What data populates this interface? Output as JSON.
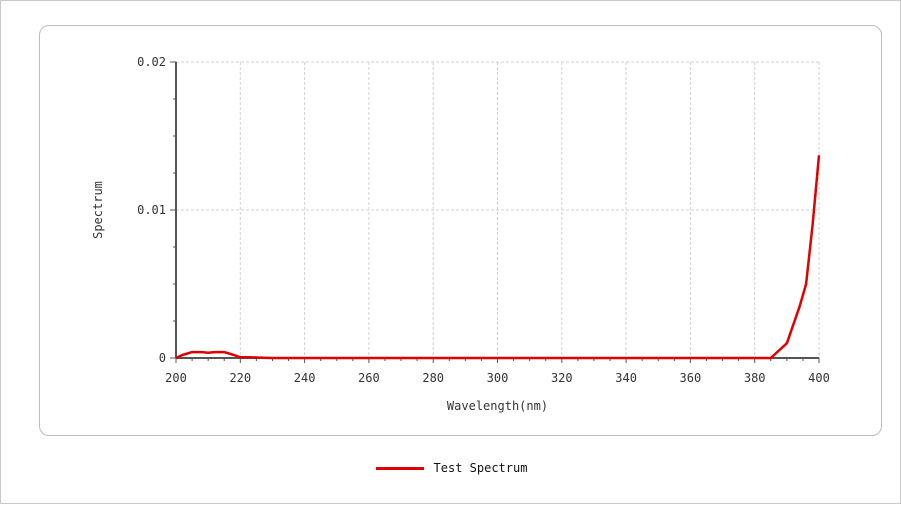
{
  "chart_data": {
    "type": "line",
    "title": "",
    "xlabel": "Wavelength(nm)",
    "ylabel": "Spectrum",
    "xlim": [
      200,
      400
    ],
    "ylim": [
      0,
      0.02
    ],
    "x_ticks": [
      "200",
      "220",
      "240",
      "260",
      "280",
      "300",
      "320",
      "340",
      "360",
      "380",
      "400"
    ],
    "y_ticks": [
      "0",
      "0.01",
      "0.02"
    ],
    "grid": true,
    "legend_position": "bottom-center",
    "series": [
      {
        "name": "Test Spectrum",
        "color": "#e00000",
        "x": [
          200,
          202,
          205,
          208,
          210,
          212,
          215,
          218,
          220,
          223,
          227,
          230,
          240,
          260,
          280,
          300,
          320,
          340,
          360,
          380,
          385,
          390,
          394,
          396,
          398,
          400
        ],
        "y": [
          0,
          0.0002,
          0.0004,
          0.0004,
          0.00035,
          0.0004,
          0.0004,
          0.0002,
          5e-05,
          5e-05,
          2e-05,
          0,
          0,
          0,
          0,
          0,
          0,
          0,
          0,
          0,
          0,
          0.001,
          0.0035,
          0.005,
          0.009,
          0.0137
        ]
      }
    ]
  }
}
